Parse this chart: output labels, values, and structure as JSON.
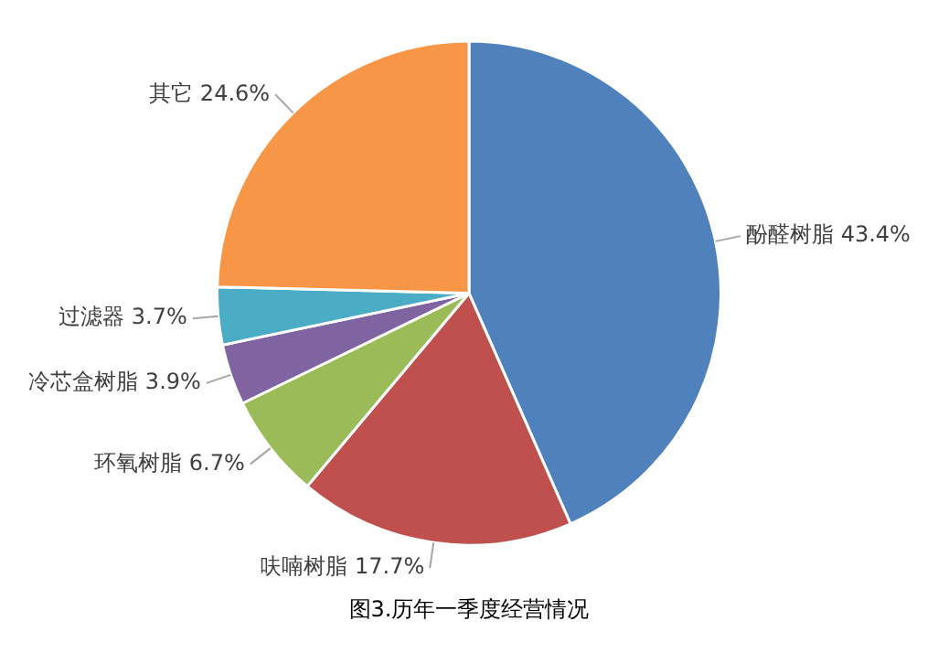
{
  "chart_data": {
    "type": "pie",
    "title": "图3.历年一季度经营情况",
    "categories": [
      "酚醛树脂",
      "呋喃树脂",
      "环氧树脂",
      "冷芯盒树脂",
      "过滤器",
      "其它"
    ],
    "values": [
      43.4,
      17.7,
      6.7,
      3.9,
      3.7,
      24.6
    ],
    "value_labels": [
      "43.4%",
      "17.7%",
      "6.7%",
      "3.9%",
      "3.7%",
      "24.6%"
    ],
    "colors": [
      "#4f81bd",
      "#c0504d",
      "#9bbb59",
      "#8064a2",
      "#4bacc6",
      "#f79646"
    ],
    "legend": false
  }
}
